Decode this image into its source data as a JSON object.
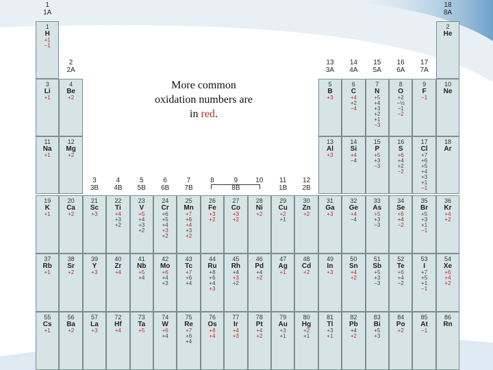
{
  "caption": {
    "line1": "More common",
    "line2": "oxidation numbers are",
    "line3_prefix": "in ",
    "line3_red": "red",
    "line3_suffix": "."
  },
  "colors": {
    "red": "#c0272d",
    "black": "#444444",
    "cell": "#d6e4e5"
  },
  "groups": [
    {
      "num": "1",
      "lab": "1A"
    },
    {
      "num": "2",
      "lab": "2A"
    },
    {
      "num": "3",
      "lab": "3B"
    },
    {
      "num": "4",
      "lab": "4B"
    },
    {
      "num": "5",
      "lab": "5B"
    },
    {
      "num": "6",
      "lab": "6B"
    },
    {
      "num": "7",
      "lab": "7B"
    },
    {
      "num": "8",
      "lab": ""
    },
    {
      "num": "9",
      "lab": "8B"
    },
    {
      "num": "10",
      "lab": ""
    },
    {
      "num": "11",
      "lab": "1B"
    },
    {
      "num": "12",
      "lab": "2B"
    },
    {
      "num": "13",
      "lab": "3A"
    },
    {
      "num": "14",
      "lab": "4A"
    },
    {
      "num": "15",
      "lab": "5A"
    },
    {
      "num": "16",
      "lab": "6A"
    },
    {
      "num": "17",
      "lab": "7A"
    },
    {
      "num": "18",
      "lab": "8A"
    }
  ],
  "elements": [
    {
      "z": "1",
      "s": "H",
      "c": 1,
      "r": 1,
      "ox": [
        [
          "+1",
          "r"
        ],
        [
          "−1",
          "r"
        ]
      ]
    },
    {
      "z": "2",
      "s": "He",
      "c": 18,
      "r": 1,
      "ox": []
    },
    {
      "z": "3",
      "s": "Li",
      "c": 1,
      "r": 2,
      "ox": [
        [
          "+1",
          "r"
        ]
      ]
    },
    {
      "z": "4",
      "s": "Be",
      "c": 2,
      "r": 2,
      "ox": [
        [
          "+2",
          "r"
        ]
      ]
    },
    {
      "z": "5",
      "s": "B",
      "c": 13,
      "r": 2,
      "ox": [
        [
          "+3",
          "r"
        ]
      ]
    },
    {
      "z": "6",
      "s": "C",
      "c": 14,
      "r": 2,
      "ox": [
        [
          "+4",
          "r"
        ],
        [
          "+2",
          "b"
        ],
        [
          "−4",
          "r"
        ]
      ]
    },
    {
      "z": "7",
      "s": "N",
      "c": 15,
      "r": 2,
      "ox": [
        [
          "+5",
          "r"
        ],
        [
          "+4",
          "b"
        ],
        [
          "+3",
          "b"
        ],
        [
          "+2",
          "b"
        ],
        [
          "+1",
          "b"
        ],
        [
          "−3",
          "r"
        ]
      ]
    },
    {
      "z": "8",
      "s": "O",
      "c": 16,
      "r": 2,
      "ox": [
        [
          "+2",
          "b"
        ],
        [
          "−½",
          "b"
        ],
        [
          "−1",
          "b"
        ],
        [
          "−2",
          "r"
        ]
      ]
    },
    {
      "z": "9",
      "s": "F",
      "c": 17,
      "r": 2,
      "ox": [
        [
          "−1",
          "r"
        ]
      ]
    },
    {
      "z": "10",
      "s": "Ne",
      "c": 18,
      "r": 2,
      "ox": []
    },
    {
      "z": "11",
      "s": "Na",
      "c": 1,
      "r": 3,
      "ox": [
        [
          "+1",
          "r"
        ]
      ]
    },
    {
      "z": "12",
      "s": "Mg",
      "c": 2,
      "r": 3,
      "ox": [
        [
          "+2",
          "r"
        ]
      ]
    },
    {
      "z": "13",
      "s": "Al",
      "c": 13,
      "r": 3,
      "ox": [
        [
          "+3",
          "r"
        ]
      ]
    },
    {
      "z": "14",
      "s": "Si",
      "c": 14,
      "r": 3,
      "ox": [
        [
          "+4",
          "r"
        ],
        [
          "−4",
          "b"
        ]
      ]
    },
    {
      "z": "15",
      "s": "P",
      "c": 15,
      "r": 3,
      "ox": [
        [
          "+5",
          "r"
        ],
        [
          "+3",
          "b"
        ],
        [
          "−3",
          "r"
        ]
      ]
    },
    {
      "z": "16",
      "s": "S",
      "c": 16,
      "r": 3,
      "ox": [
        [
          "+6",
          "r"
        ],
        [
          "+4",
          "b"
        ],
        [
          "+2",
          "b"
        ],
        [
          "−2",
          "r"
        ]
      ]
    },
    {
      "z": "17",
      "s": "Cl",
      "c": 17,
      "r": 3,
      "ox": [
        [
          "+7",
          "b"
        ],
        [
          "+6",
          "b"
        ],
        [
          "+5",
          "b"
        ],
        [
          "+4",
          "b"
        ],
        [
          "+3",
          "b"
        ],
        [
          "+1",
          "b"
        ],
        [
          "−1",
          "r"
        ]
      ]
    },
    {
      "z": "18",
      "s": "Ar",
      "c": 18,
      "r": 3,
      "ox": []
    },
    {
      "z": "19",
      "s": "K",
      "c": 1,
      "r": 4,
      "ox": [
        [
          "+1",
          "r"
        ]
      ]
    },
    {
      "z": "20",
      "s": "Ca",
      "c": 2,
      "r": 4,
      "ox": [
        [
          "+2",
          "r"
        ]
      ]
    },
    {
      "z": "21",
      "s": "Sc",
      "c": 3,
      "r": 4,
      "ox": [
        [
          "+3",
          "r"
        ]
      ]
    },
    {
      "z": "22",
      "s": "Ti",
      "c": 4,
      "r": 4,
      "ox": [
        [
          "+4",
          "r"
        ],
        [
          "+3",
          "b"
        ],
        [
          "+2",
          "b"
        ]
      ]
    },
    {
      "z": "23",
      "s": "V",
      "c": 5,
      "r": 4,
      "ox": [
        [
          "+5",
          "r"
        ],
        [
          "+4",
          "b"
        ],
        [
          "+3",
          "b"
        ],
        [
          "+2",
          "b"
        ]
      ]
    },
    {
      "z": "24",
      "s": "Cr",
      "c": 6,
      "r": 4,
      "ox": [
        [
          "+6",
          "b"
        ],
        [
          "+5",
          "b"
        ],
        [
          "+4",
          "b"
        ],
        [
          "+3",
          "r"
        ],
        [
          "+2",
          "b"
        ]
      ]
    },
    {
      "z": "25",
      "s": "Mn",
      "c": 7,
      "r": 4,
      "ox": [
        [
          "+7",
          "r"
        ],
        [
          "+6",
          "b"
        ],
        [
          "+4",
          "r"
        ],
        [
          "+3",
          "b"
        ],
        [
          "+2",
          "r"
        ]
      ]
    },
    {
      "z": "26",
      "s": "Fe",
      "c": 8,
      "r": 4,
      "ox": [
        [
          "+3",
          "r"
        ],
        [
          "+2",
          "r"
        ]
      ]
    },
    {
      "z": "27",
      "s": "Co",
      "c": 9,
      "r": 4,
      "ox": [
        [
          "+3",
          "r"
        ],
        [
          "+2",
          "r"
        ]
      ]
    },
    {
      "z": "28",
      "s": "Ni",
      "c": 10,
      "r": 4,
      "ox": [
        [
          "+2",
          "r"
        ]
      ]
    },
    {
      "z": "29",
      "s": "Cu",
      "c": 11,
      "r": 4,
      "ox": [
        [
          "+2",
          "r"
        ],
        [
          "+1",
          "b"
        ]
      ]
    },
    {
      "z": "30",
      "s": "Zn",
      "c": 12,
      "r": 4,
      "ox": [
        [
          "+2",
          "r"
        ]
      ]
    },
    {
      "z": "31",
      "s": "Ga",
      "c": 13,
      "r": 4,
      "ox": [
        [
          "+3",
          "r"
        ]
      ]
    },
    {
      "z": "32",
      "s": "Ge",
      "c": 14,
      "r": 4,
      "ox": [
        [
          "+4",
          "r"
        ],
        [
          "−4",
          "b"
        ]
      ]
    },
    {
      "z": "33",
      "s": "As",
      "c": 15,
      "r": 4,
      "ox": [
        [
          "+5",
          "r"
        ],
        [
          "+3",
          "b"
        ],
        [
          "−3",
          "b"
        ]
      ]
    },
    {
      "z": "34",
      "s": "Se",
      "c": 16,
      "r": 4,
      "ox": [
        [
          "+6",
          "r"
        ],
        [
          "+4",
          "b"
        ],
        [
          "−2",
          "r"
        ]
      ]
    },
    {
      "z": "35",
      "s": "Br",
      "c": 17,
      "r": 4,
      "ox": [
        [
          "+5",
          "b"
        ],
        [
          "+3",
          "b"
        ],
        [
          "+1",
          "b"
        ],
        [
          "−1",
          "r"
        ]
      ]
    },
    {
      "z": "36",
      "s": "Kr",
      "c": 18,
      "r": 4,
      "ox": [
        [
          "+4",
          "r"
        ],
        [
          "+2",
          "r"
        ]
      ]
    },
    {
      "z": "37",
      "s": "Rb",
      "c": 1,
      "r": 5,
      "ox": [
        [
          "+1",
          "r"
        ]
      ]
    },
    {
      "z": "38",
      "s": "Sr",
      "c": 2,
      "r": 5,
      "ox": [
        [
          "+2",
          "r"
        ]
      ]
    },
    {
      "z": "39",
      "s": "Y",
      "c": 3,
      "r": 5,
      "ox": [
        [
          "+3",
          "r"
        ]
      ]
    },
    {
      "z": "40",
      "s": "Zr",
      "c": 4,
      "r": 5,
      "ox": [
        [
          "+4",
          "r"
        ]
      ]
    },
    {
      "z": "41",
      "s": "Nb",
      "c": 5,
      "r": 5,
      "ox": [
        [
          "+5",
          "r"
        ],
        [
          "+4",
          "b"
        ]
      ]
    },
    {
      "z": "42",
      "s": "Mo",
      "c": 6,
      "r": 5,
      "ox": [
        [
          "+6",
          "r"
        ],
        [
          "+4",
          "b"
        ],
        [
          "+3",
          "b"
        ]
      ]
    },
    {
      "z": "43",
      "s": "Tc",
      "c": 7,
      "r": 5,
      "ox": [
        [
          "+7",
          "r"
        ],
        [
          "+6",
          "b"
        ],
        [
          "+4",
          "b"
        ]
      ]
    },
    {
      "z": "44",
      "s": "Ru",
      "c": 8,
      "r": 5,
      "ox": [
        [
          "+8",
          "b"
        ],
        [
          "+6",
          "b"
        ],
        [
          "+4",
          "b"
        ],
        [
          "+3",
          "r"
        ]
      ]
    },
    {
      "z": "45",
      "s": "Rh",
      "c": 9,
      "r": 5,
      "ox": [
        [
          "+4",
          "b"
        ],
        [
          "+3",
          "r"
        ],
        [
          "+2",
          "b"
        ]
      ]
    },
    {
      "z": "46",
      "s": "Pd",
      "c": 10,
      "r": 5,
      "ox": [
        [
          "+4",
          "b"
        ],
        [
          "+2",
          "r"
        ]
      ]
    },
    {
      "z": "47",
      "s": "Ag",
      "c": 11,
      "r": 5,
      "ox": [
        [
          "+1",
          "r"
        ]
      ]
    },
    {
      "z": "48",
      "s": "Cd",
      "c": 12,
      "r": 5,
      "ox": [
        [
          "+2",
          "r"
        ]
      ]
    },
    {
      "z": "49",
      "s": "In",
      "c": 13,
      "r": 5,
      "ox": [
        [
          "+3",
          "r"
        ]
      ]
    },
    {
      "z": "50",
      "s": "Sn",
      "c": 14,
      "r": 5,
      "ox": [
        [
          "+4",
          "r"
        ],
        [
          "+2",
          "r"
        ]
      ]
    },
    {
      "z": "51",
      "s": "Sb",
      "c": 15,
      "r": 5,
      "ox": [
        [
          "+5",
          "r"
        ],
        [
          "+3",
          "b"
        ],
        [
          "−3",
          "b"
        ]
      ]
    },
    {
      "z": "52",
      "s": "Te",
      "c": 16,
      "r": 5,
      "ox": [
        [
          "+6",
          "r"
        ],
        [
          "+4",
          "b"
        ],
        [
          "−2",
          "b"
        ]
      ]
    },
    {
      "z": "53",
      "s": "I",
      "c": 17,
      "r": 5,
      "ox": [
        [
          "+7",
          "b"
        ],
        [
          "+5",
          "b"
        ],
        [
          "+1",
          "b"
        ],
        [
          "−1",
          "r"
        ]
      ]
    },
    {
      "z": "54",
      "s": "Xe",
      "c": 18,
      "r": 5,
      "ox": [
        [
          "+6",
          "r"
        ],
        [
          "+4",
          "r"
        ],
        [
          "+2",
          "r"
        ]
      ]
    },
    {
      "z": "55",
      "s": "Cs",
      "c": 1,
      "r": 6,
      "ox": [
        [
          "+1",
          "r"
        ]
      ]
    },
    {
      "z": "56",
      "s": "Ba",
      "c": 2,
      "r": 6,
      "ox": [
        [
          "+2",
          "r"
        ]
      ]
    },
    {
      "z": "57",
      "s": "La",
      "c": 3,
      "r": 6,
      "ox": [
        [
          "+3",
          "r"
        ]
      ]
    },
    {
      "z": "72",
      "s": "Hf",
      "c": 4,
      "r": 6,
      "ox": [
        [
          "+4",
          "r"
        ]
      ]
    },
    {
      "z": "73",
      "s": "Ta",
      "c": 5,
      "r": 6,
      "ox": [
        [
          "+5",
          "r"
        ]
      ]
    },
    {
      "z": "74",
      "s": "W",
      "c": 6,
      "r": 6,
      "ox": [
        [
          "+6",
          "r"
        ],
        [
          "+4",
          "b"
        ]
      ]
    },
    {
      "z": "75",
      "s": "Re",
      "c": 7,
      "r": 6,
      "ox": [
        [
          "+7",
          "r"
        ],
        [
          "+6",
          "b"
        ],
        [
          "+4",
          "b"
        ]
      ]
    },
    {
      "z": "76",
      "s": "Os",
      "c": 8,
      "r": 6,
      "ox": [
        [
          "+8",
          "r"
        ],
        [
          "+4",
          "r"
        ]
      ]
    },
    {
      "z": "77",
      "s": "Ir",
      "c": 9,
      "r": 6,
      "ox": [
        [
          "+4",
          "r"
        ],
        [
          "+3",
          "r"
        ]
      ]
    },
    {
      "z": "78",
      "s": "Pt",
      "c": 10,
      "r": 6,
      "ox": [
        [
          "+4",
          "r"
        ],
        [
          "+2",
          "r"
        ]
      ]
    },
    {
      "z": "79",
      "s": "Au",
      "c": 11,
      "r": 6,
      "ox": [
        [
          "+3",
          "r"
        ],
        [
          "+1",
          "b"
        ]
      ]
    },
    {
      "z": "80",
      "s": "Hg",
      "c": 12,
      "r": 6,
      "ox": [
        [
          "+2",
          "r"
        ],
        [
          "+1",
          "b"
        ]
      ]
    },
    {
      "z": "81",
      "s": "Tl",
      "c": 13,
      "r": 6,
      "ox": [
        [
          "+3",
          "b"
        ],
        [
          "+1",
          "r"
        ]
      ]
    },
    {
      "z": "82",
      "s": "Pb",
      "c": 14,
      "r": 6,
      "ox": [
        [
          "+4",
          "b"
        ],
        [
          "+2",
          "r"
        ]
      ]
    },
    {
      "z": "83",
      "s": "Bi",
      "c": 15,
      "r": 6,
      "ox": [
        [
          "+5",
          "b"
        ],
        [
          "+3",
          "r"
        ]
      ]
    },
    {
      "z": "84",
      "s": "Po",
      "c": 16,
      "r": 6,
      "ox": [
        [
          "+2",
          "r"
        ]
      ]
    },
    {
      "z": "85",
      "s": "At",
      "c": 17,
      "r": 6,
      "ox": [
        [
          "−1",
          "r"
        ]
      ]
    },
    {
      "z": "86",
      "s": "Rn",
      "c": 18,
      "r": 6,
      "ox": []
    }
  ]
}
